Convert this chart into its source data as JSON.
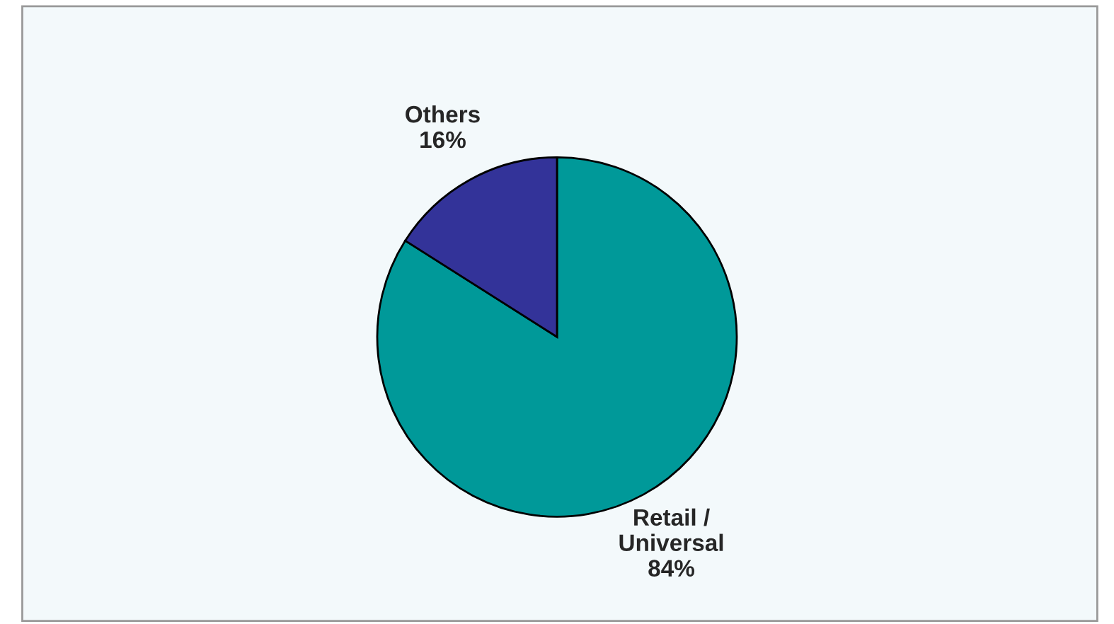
{
  "chart_data": {
    "type": "pie",
    "categories": [
      "Retail /\nUniversal",
      "Others"
    ],
    "values": [
      84,
      16
    ],
    "colors": [
      "#009999",
      "#333399"
    ],
    "value_labels": [
      "84%",
      "16%"
    ]
  }
}
